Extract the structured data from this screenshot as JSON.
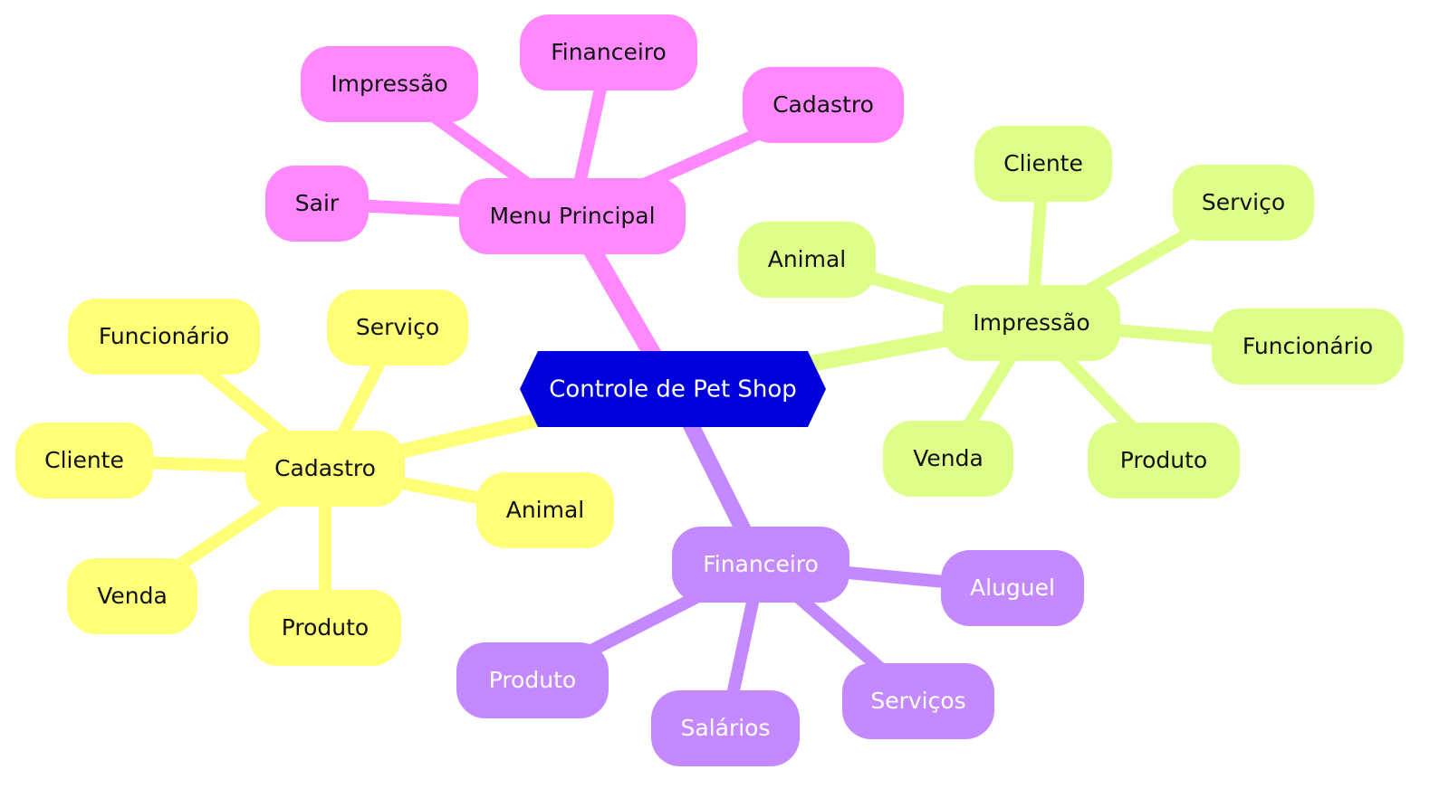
{
  "colors": {
    "root": "#0000dd",
    "root_text": "#ffffff",
    "menu_principal": "#ff88ff",
    "impressao": "#ddff88",
    "cadastro": "#ffff77",
    "financeiro": "#c489ff",
    "dark_text": "#111111",
    "light_text": "#ffffff"
  },
  "root": {
    "label": "Controle de Pet Shop"
  },
  "branches": [
    {
      "key": "menu_principal",
      "label": "Menu Principal",
      "children": [
        "Impressão",
        "Financeiro",
        "Cadastro",
        "Sair"
      ]
    },
    {
      "key": "impressao",
      "label": "Impressão",
      "children": [
        "Cliente",
        "Serviço",
        "Animal",
        "Funcionário",
        "Venda",
        "Produto"
      ]
    },
    {
      "key": "cadastro",
      "label": "Cadastro",
      "children": [
        "Funcionário",
        "Serviço",
        "Cliente",
        "Animal",
        "Venda",
        "Produto"
      ]
    },
    {
      "key": "financeiro",
      "label": "Financeiro",
      "children": [
        "Aluguel",
        "Produto",
        "Serviços",
        "Salários"
      ]
    }
  ]
}
